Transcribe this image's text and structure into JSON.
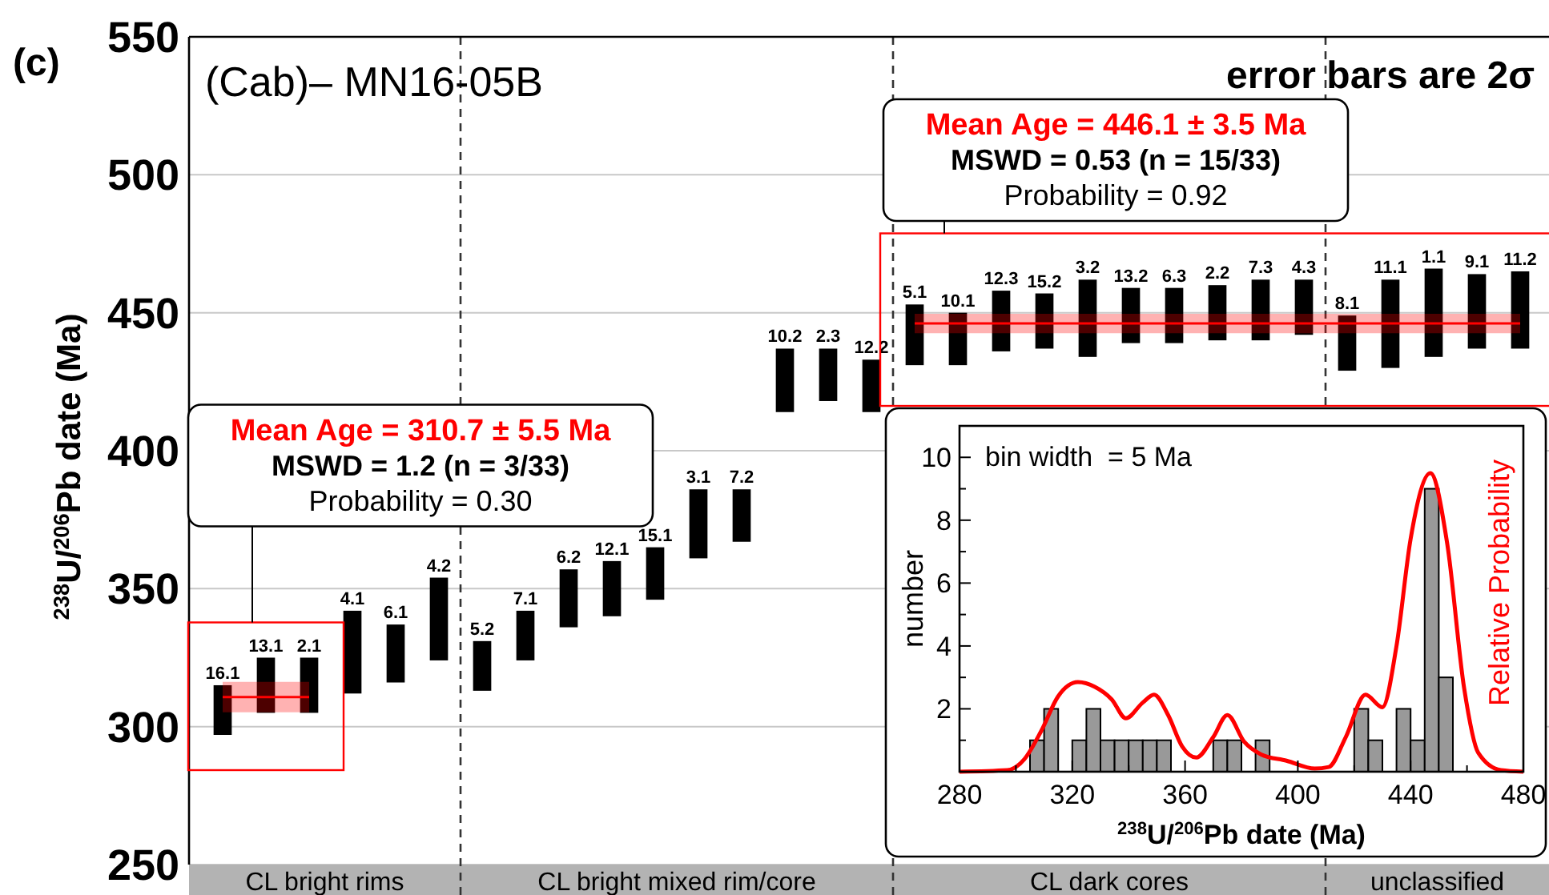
{
  "chart_data": [
    {
      "type": "bar",
      "title": "(Cab)– MN16-05B",
      "ylabel": "$^{238}$U/$^{206}$Pb date (Ma)",
      "categories": [
        "16.1",
        "13.1",
        "2.1",
        "4.1",
        "6.1",
        "4.2",
        "5.2",
        "7.1",
        "6.2",
        "12.1",
        "15.1",
        "3.1",
        "7.2",
        "10.2",
        "2.3",
        "12.2",
        "5.1",
        "10.1",
        "12.3",
        "15.2",
        "3.2",
        "13.2",
        "6.3",
        "2.2",
        "7.3",
        "4.3",
        "8.1",
        "11.1",
        "1.1",
        "9.1",
        "11.2"
      ],
      "base": [
        297,
        305,
        305,
        312,
        316,
        324,
        313,
        324,
        336,
        340,
        346,
        361,
        367,
        414,
        418,
        414,
        431,
        431,
        436,
        437,
        434,
        439,
        439,
        440,
        440,
        442,
        429,
        430,
        434,
        437,
        437
      ],
      "values": [
        18,
        20,
        20,
        30,
        21,
        30,
        18,
        18,
        21,
        20,
        19,
        25,
        19,
        23,
        19,
        19,
        22,
        19,
        22,
        20,
        28,
        20,
        20,
        20,
        22,
        20,
        20,
        32,
        32,
        27,
        28
      ],
      "color": "#000000",
      "series": [
        {
          "type": "line",
          "color": "#ff0000",
          "values": [
            310.7,
            310.7,
            310.7,
            null,
            null,
            null,
            null,
            null,
            null,
            null,
            null,
            null,
            null,
            null,
            null,
            null,
            null,
            null,
            null,
            null,
            null,
            null,
            null,
            null,
            null,
            null,
            null,
            null,
            null,
            null,
            null
          ],
          "lower": [
            305.2,
            305.2,
            305.2,
            null,
            null,
            null,
            null,
            null,
            null,
            null,
            null,
            null,
            null,
            null,
            null,
            null,
            null,
            null,
            null,
            null,
            null,
            null,
            null,
            null,
            null,
            null,
            null,
            null,
            null,
            null,
            null
          ],
          "upper": [
            316.2,
            316.2,
            316.2,
            null,
            null,
            null,
            null,
            null,
            null,
            null,
            null,
            null,
            null,
            null,
            null,
            null,
            null,
            null,
            null,
            null,
            null,
            null,
            null,
            null,
            null,
            null,
            null,
            null,
            null,
            null,
            null
          ]
        },
        {
          "type": "line",
          "color": "#ff0000",
          "values": [
            null,
            null,
            null,
            null,
            null,
            null,
            null,
            null,
            null,
            null,
            null,
            null,
            null,
            null,
            null,
            null,
            446.1,
            446.1,
            446.1,
            446.1,
            446.1,
            446.1,
            446.1,
            446.1,
            446.1,
            446.1,
            446.1,
            446.1,
            446.1,
            446.1,
            446.1
          ],
          "lower": [
            null,
            null,
            null,
            null,
            null,
            null,
            null,
            null,
            null,
            null,
            null,
            null,
            null,
            null,
            null,
            null,
            442.6,
            442.6,
            442.6,
            442.6,
            442.6,
            442.6,
            442.6,
            442.6,
            442.6,
            442.6,
            442.6,
            442.6,
            442.6,
            442.6,
            442.6
          ],
          "upper": [
            null,
            null,
            null,
            null,
            null,
            null,
            null,
            null,
            null,
            null,
            null,
            null,
            null,
            null,
            null,
            null,
            449.6,
            449.6,
            449.6,
            449.6,
            449.6,
            449.6,
            449.6,
            449.6,
            449.6,
            449.6,
            449.6,
            449.6,
            449.6,
            449.6,
            449.6
          ]
        }
      ],
      "ylim": [
        250,
        550
      ],
      "yticks": [
        250,
        300,
        350,
        400,
        450,
        500,
        550
      ],
      "grid": "y",
      "annotations": [
        "Mean Age = 310.7 ± 5.5 Ma",
        "MSWD = 1.2 (n = 3/33)",
        "Probability = 0.30",
        "Mean Age = 446.1 ± 3.5 Ma",
        "MSWD = 0.53 (n = 15/33)",
        "Probability = 0.92",
        "(c)",
        "error bars are 2σ",
        "CL bright rims",
        "CL bright mixed rim/core",
        "CL dark cores",
        "unclassified"
      ]
    },
    {
      "type": "histogram",
      "xlabel": "$^{238}$U/$^{206}$Pb date (Ma)",
      "ylabel": "number",
      "y2label": "Relative Probability",
      "bins": [
        305,
        310,
        315,
        320,
        325,
        330,
        335,
        340,
        345,
        350,
        355,
        360,
        365,
        370,
        375,
        380,
        385,
        390,
        395,
        400,
        405,
        410,
        415,
        420,
        425,
        430,
        435,
        440,
        445,
        450,
        455
      ],
      "series": [
        {
          "type": "histogram",
          "color": "#999999",
          "values": [
            1,
            2,
            0,
            1,
            2,
            1,
            1,
            1,
            1,
            1,
            0,
            0,
            0,
            1,
            1,
            0,
            1,
            0,
            0,
            0,
            0,
            0,
            0,
            2,
            1,
            0,
            2,
            1,
            9,
            3
          ]
        },
        {
          "type": "line",
          "color": "#ff0000",
          "x": [
            280,
            297,
            303,
            309,
            315,
            322,
            328,
            334,
            339,
            345,
            349,
            354,
            359,
            364,
            370,
            375,
            381,
            387,
            396,
            406,
            411,
            417,
            424,
            430,
            435,
            440,
            447,
            453,
            459,
            464,
            472,
            480
          ],
          "values": [
            0,
            0.05,
            0.4,
            1.3,
            2.4,
            2.85,
            2.7,
            2.3,
            1.7,
            2.2,
            2.45,
            1.8,
            0.8,
            0.45,
            1.1,
            1.8,
            0.95,
            0.55,
            0.35,
            0.1,
            0.15,
            1.1,
            2.45,
            2.05,
            4,
            7.4,
            9.5,
            7.25,
            2.65,
            0.6,
            0.05,
            0
          ]
        }
      ],
      "xlim": [
        280,
        480
      ],
      "xticks": [
        280,
        {
          "value": 300,
          "label": null
        },
        320,
        {
          "value": 340,
          "label": null
        },
        360,
        {
          "value": 380,
          "label": null
        },
        400,
        {
          "value": 420,
          "label": null
        },
        440,
        {
          "value": 460,
          "label": null
        },
        480
      ],
      "ylim": [
        0,
        11
      ],
      "yticks": [
        {
          "value": 1,
          "label": null
        },
        2,
        {
          "value": 3,
          "label": null
        },
        4,
        {
          "value": 5,
          "label": null
        },
        6,
        {
          "value": 7,
          "label": null
        },
        8,
        {
          "value": 9,
          "label": null
        },
        10
      ],
      "annotations": [
        "bin width  = 5 Ma"
      ]
    }
  ]
}
